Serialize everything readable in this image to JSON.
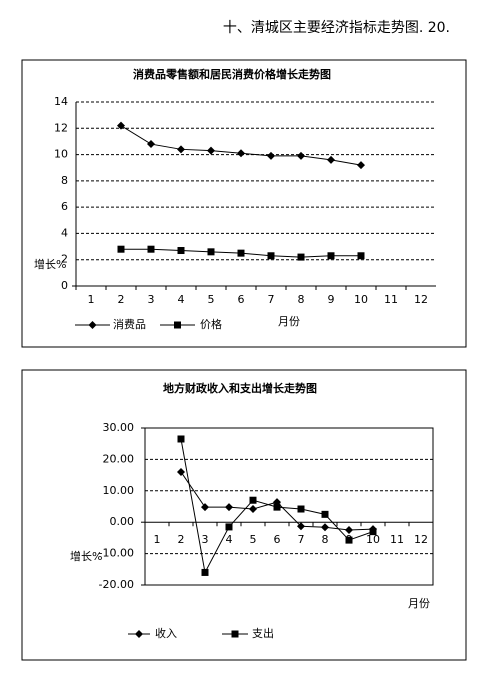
{
  "header": "十、清城区主要经济指标走势图. 20.",
  "chart_data": [
    {
      "type": "line",
      "title": "消费品零售额和居民消费价格增长走势图",
      "categories": [
        "1",
        "2",
        "3",
        "4",
        "5",
        "6",
        "7",
        "8",
        "9",
        "10",
        "11",
        "12"
      ],
      "series": [
        {
          "name": "消费品",
          "color": "#000000",
          "marker": "diamond",
          "values": [
            null,
            12.2,
            10.8,
            10.4,
            10.3,
            10.1,
            9.9,
            9.9,
            9.6,
            9.2,
            null,
            null
          ]
        },
        {
          "name": "价格",
          "color": "#000000",
          "marker": "square",
          "values": [
            null,
            2.8,
            2.8,
            2.7,
            2.6,
            2.5,
            2.3,
            2.2,
            2.3,
            2.3,
            null,
            null
          ]
        }
      ],
      "ylim": [
        0,
        14
      ],
      "yticks": [
        0,
        2,
        4,
        6,
        8,
        10,
        12,
        14
      ],
      "grid": true,
      "y_label": "增长%",
      "x_label": "月份"
    },
    {
      "type": "line",
      "title": "地方财政收入和支出增长走势图",
      "categories": [
        "1",
        "2",
        "3",
        "4",
        "5",
        "6",
        "7",
        "8",
        "9",
        "10",
        "11",
        "12"
      ],
      "series": [
        {
          "name": "收入",
          "color": "#000000",
          "marker": "diamond",
          "values": [
            null,
            16,
            4.8,
            4.8,
            4.2,
            6.4,
            -1.3,
            -1.6,
            -2.5,
            -2.2,
            null,
            null
          ]
        },
        {
          "name": "支出",
          "color": "#000000",
          "marker": "square",
          "values": [
            null,
            26.5,
            -16,
            -1.5,
            7,
            4.8,
            4.2,
            2.5,
            -5.7,
            -3,
            null,
            null
          ]
        }
      ],
      "ylim": [
        -20,
        30
      ],
      "yticks": [
        {
          "value": -20,
          "label": "-20.00"
        },
        {
          "value": -10,
          "label": "-10.00"
        },
        {
          "value": 0,
          "label": "0.00"
        },
        {
          "value": 10,
          "label": "10.00"
        },
        {
          "value": 20,
          "label": "20.00"
        },
        {
          "value": 30,
          "label": "30.00"
        }
      ],
      "grid": true,
      "y_label": "增长%",
      "x_label": "月份"
    }
  ]
}
